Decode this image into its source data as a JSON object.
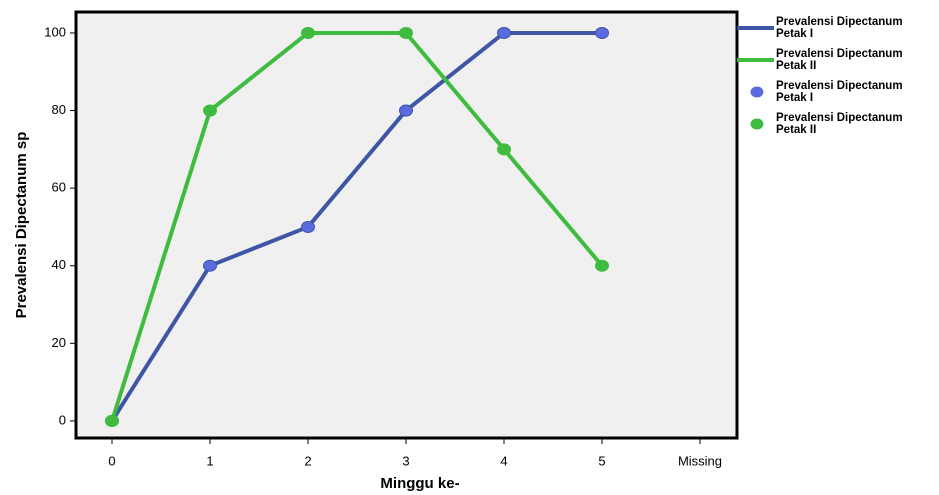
{
  "chart_data": {
    "type": "line",
    "x_label": "Minggu ke-",
    "y_label": "Prevalensi Dipectanum sp",
    "categories": [
      "0",
      "1",
      "2",
      "3",
      "4",
      "5",
      "Missing"
    ],
    "series": [
      {
        "name": "Prevalensi Dipectanum Petak I",
        "color": "#3f55a5",
        "marker_color": "#5a6be0",
        "values": [
          0,
          40,
          50,
          80,
          100,
          100,
          null
        ]
      },
      {
        "name": "Prevalensi Dipectanum Petak II",
        "color": "#3fbc3f",
        "marker_color": "#3fbc3f",
        "values": [
          0,
          80,
          100,
          100,
          70,
          40,
          null
        ]
      }
    ],
    "ylim": [
      -4.4,
      105.4
    ],
    "yticks": [
      0,
      20,
      40,
      60,
      80,
      100
    ],
    "background": "#f0f0f0"
  }
}
